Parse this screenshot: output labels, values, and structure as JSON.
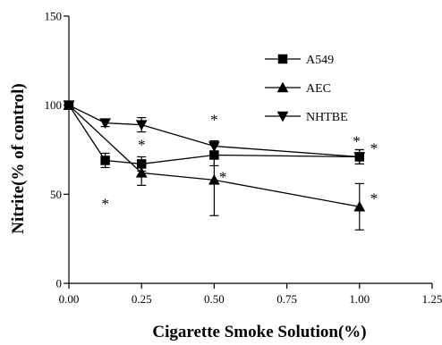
{
  "chart_data": {
    "type": "line",
    "title": "",
    "xlabel": "Cigarette Smoke Solution(%)",
    "ylabel": "Nitrite(% of control)",
    "xlim": [
      0,
      1.25
    ],
    "ylim": [
      0,
      150
    ],
    "x_ticks": [
      {
        "value": 0,
        "label": "0.00"
      },
      {
        "value": 0.25,
        "label": "0.25"
      },
      {
        "value": 0.5,
        "label": "0.50"
      },
      {
        "value": 0.75,
        "label": "0.75"
      },
      {
        "value": 1.0,
        "label": "1.00"
      },
      {
        "value": 1.25,
        "label": "1.25"
      }
    ],
    "y_ticks": [
      {
        "value": 0,
        "label": "0"
      },
      {
        "value": 50,
        "label": "50"
      },
      {
        "value": 100,
        "label": "100"
      },
      {
        "value": 150,
        "label": "150"
      }
    ],
    "grid": false,
    "legend_position": "top-right",
    "series": [
      {
        "name": "A549",
        "marker": "square",
        "x": [
          0,
          0.125,
          0.25,
          0.5,
          1.0
        ],
        "y": [
          100,
          69,
          67,
          72,
          71
        ],
        "err": [
          0,
          4,
          4,
          6,
          4
        ]
      },
      {
        "name": "AEC",
        "marker": "triangle-up",
        "x": [
          0,
          0.25,
          0.5,
          1.0
        ],
        "y": [
          100,
          62,
          58,
          43
        ],
        "err": [
          0,
          7,
          20,
          13
        ]
      },
      {
        "name": "NHTBE",
        "marker": "triangle-down",
        "x": [
          0,
          0.125,
          0.25,
          0.5,
          1.0
        ],
        "y": [
          100,
          90,
          89,
          77,
          71
        ],
        "err": [
          0,
          2,
          4,
          3,
          4
        ]
      }
    ],
    "annotations": [
      {
        "text": "*",
        "x": 0.125,
        "y": 46
      },
      {
        "text": "*",
        "x": 0.25,
        "y": 79
      },
      {
        "text": "*",
        "x": 0.5,
        "y": 93
      },
      {
        "text": "*",
        "x": 0.53,
        "y": 61
      },
      {
        "text": "*",
        "x": 0.99,
        "y": 81
      },
      {
        "text": "*",
        "x": 1.05,
        "y": 77
      },
      {
        "text": "*",
        "x": 1.05,
        "y": 49
      }
    ]
  }
}
